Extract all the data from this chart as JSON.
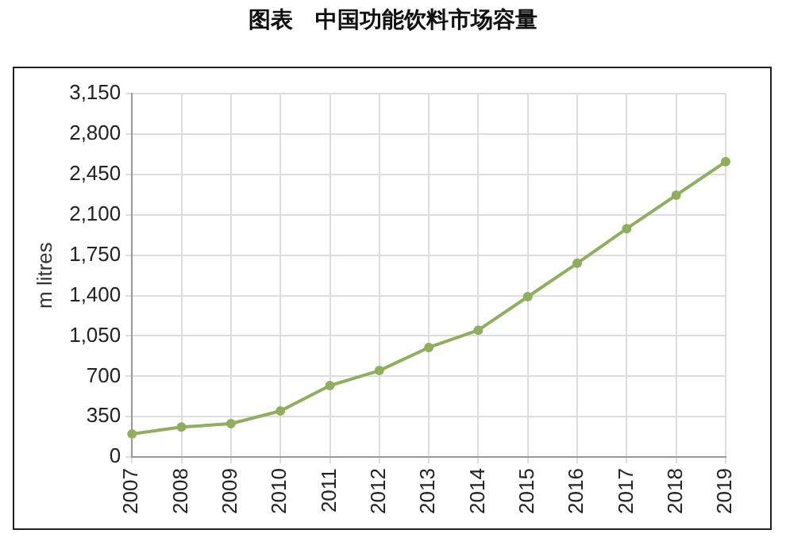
{
  "chart_data": {
    "type": "line",
    "title": "图表　中国功能饮料市场容量",
    "ylabel": "m litres",
    "categories": [
      "2007",
      "2008",
      "2009",
      "2010",
      "2011",
      "2012",
      "2013",
      "2014",
      "2015",
      "2016",
      "2017",
      "2018",
      "2019"
    ],
    "series": [
      {
        "color": "#8fae5e",
        "values": [
          200,
          260,
          290,
          400,
          620,
          750,
          950,
          1100,
          1390,
          1680,
          1980,
          2270,
          2560
        ]
      }
    ],
    "ylim": [
      0,
      3150
    ],
    "yticks": [
      0,
      350,
      700,
      {
        "value": 1050,
        "label": "1,050"
      },
      {
        "value": 1400,
        "label": "1,400"
      },
      {
        "value": 1750,
        "label": "1,750"
      },
      {
        "value": 2100,
        "label": "2,100"
      },
      {
        "value": 2450,
        "label": "2,450"
      },
      {
        "value": 2800,
        "label": "2,800"
      },
      {
        "value": 3150,
        "label": "3,150"
      }
    ],
    "grid": true,
    "legend": false,
    "marker": "circle",
    "line_style": "solid"
  }
}
